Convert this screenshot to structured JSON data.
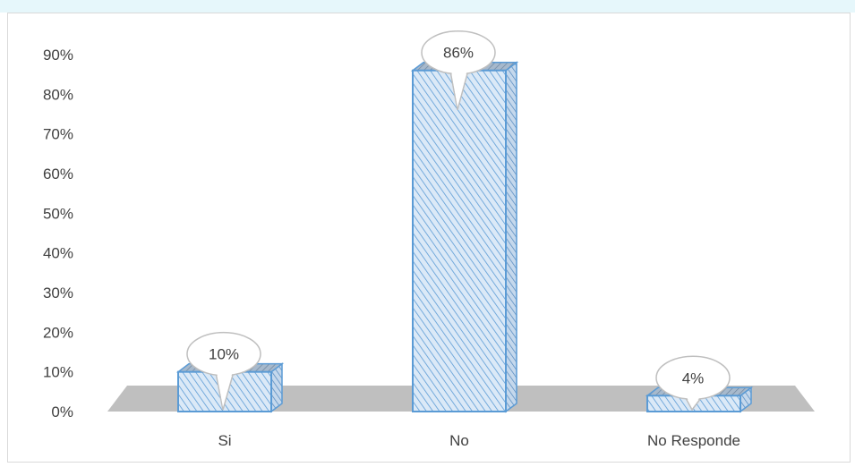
{
  "chart_data": {
    "type": "bar",
    "categories": [
      "Si",
      "No",
      "No Responde"
    ],
    "values": [
      10,
      86,
      4
    ],
    "data_labels": [
      "10%",
      "86%",
      "4%"
    ],
    "yticks": [
      "0%",
      "10%",
      "20%",
      "30%",
      "40%",
      "50%",
      "60%",
      "70%",
      "80%",
      "90%"
    ],
    "ylim": [
      0,
      90
    ],
    "title": "",
    "xlabel": "",
    "ylabel": "",
    "grid": false,
    "legend": "none",
    "style": "3d-column",
    "colors": {
      "bar_fill": "#dbe9f7",
      "bar_hatch": "#5b9bd5",
      "bar_edge": "#5b9bd5",
      "bar_top": "#8fa9c4",
      "floor": "#bfbfbf",
      "callout_edge": "#bfbfbf",
      "text": "#404040"
    }
  }
}
